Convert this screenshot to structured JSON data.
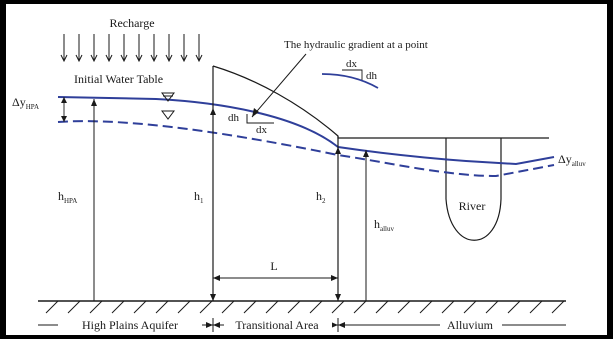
{
  "labels": {
    "recharge": "Recharge",
    "initial_water_table": "Initial Water Table",
    "hydraulic_gradient": "The hydraulic gradient at a point",
    "dx": "dx",
    "dh": "dh",
    "river": "River",
    "length": "L",
    "delta_y_hpa": {
      "main": "Δy",
      "sub": "HPA"
    },
    "delta_y_alluv": {
      "main": "Δy",
      "sub": "alluv"
    },
    "h_hpa": {
      "main": "h",
      "sub": "HPA"
    },
    "h1": {
      "main": "h",
      "sub": "1"
    },
    "h2": {
      "main": "h",
      "sub": "2"
    },
    "h_alluv": {
      "main": "h",
      "sub": "alluv"
    }
  },
  "zones": {
    "high_plains_aquifer": "High Plains Aquifer",
    "transitional_area": "Transitional Area",
    "alluvium": "Alluvium"
  },
  "colors": {
    "water_table": "#2f3f9a",
    "ink": "#1a1a1a",
    "frame": "#000000"
  },
  "icons": {
    "water_table_marker": "inverted-triangle"
  }
}
